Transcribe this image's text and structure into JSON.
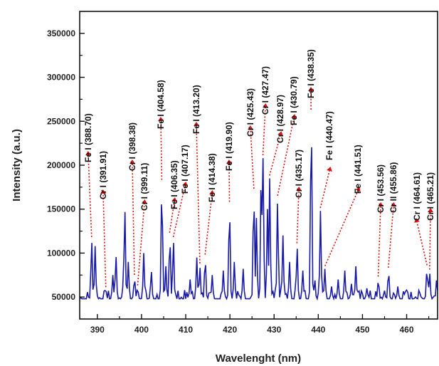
{
  "chart_data": {
    "type": "line",
    "title": "",
    "xlabel": "Wavelenght (nm)",
    "ylabel": "Intensity (a.u.)",
    "xlim": [
      386,
      467
    ],
    "ylim": [
      25000,
      375000
    ],
    "x_ticks": [
      390,
      400,
      410,
      420,
      430,
      440,
      450,
      460
    ],
    "y_ticks": [
      50000,
      100000,
      150000,
      200000,
      250000,
      300000,
      350000
    ],
    "grid": false,
    "series": [
      {
        "color": "#1a1aa8",
        "peaks": [
          [
            388.7,
            115000
          ],
          [
            389.5,
            108000
          ],
          [
            391.9,
            58000
          ],
          [
            393.5,
            75000
          ],
          [
            394.2,
            98000
          ],
          [
            395.8,
            62000
          ],
          [
            396.2,
            152000
          ],
          [
            397.0,
            90000
          ],
          [
            398.4,
            72000
          ],
          [
            399.1,
            60000
          ],
          [
            400.5,
            100000
          ],
          [
            402.2,
            80000
          ],
          [
            404.6,
            180000
          ],
          [
            405.5,
            85000
          ],
          [
            406.4,
            120000
          ],
          [
            407.2,
            115000
          ],
          [
            411.0,
            70000
          ],
          [
            412.5,
            95000
          ],
          [
            413.2,
            85000
          ],
          [
            414.4,
            95000
          ],
          [
            416.0,
            75000
          ],
          [
            418.5,
            80000
          ],
          [
            419.9,
            155000
          ],
          [
            421.0,
            90000
          ],
          [
            423.0,
            82000
          ],
          [
            425.4,
            170000
          ],
          [
            426.0,
            140000
          ],
          [
            427.1,
            200000
          ],
          [
            427.5,
            208000
          ],
          [
            428.5,
            150000
          ],
          [
            429.0,
            185000
          ],
          [
            430.8,
            162000
          ],
          [
            432.0,
            120000
          ],
          [
            433.5,
            90000
          ],
          [
            435.2,
            108000
          ],
          [
            436.5,
            80000
          ],
          [
            438.4,
            260000
          ],
          [
            439.2,
            70000
          ],
          [
            440.5,
            148000
          ],
          [
            441.5,
            82000
          ],
          [
            443.0,
            62000
          ],
          [
            444.5,
            70000
          ],
          [
            446.0,
            80000
          ],
          [
            447.5,
            65000
          ],
          [
            448.5,
            85000
          ],
          [
            451.0,
            60000
          ],
          [
            453.6,
            70000
          ],
          [
            455.9,
            80000
          ],
          [
            458.0,
            62000
          ],
          [
            460.0,
            58000
          ],
          [
            462.0,
            50000
          ],
          [
            464.6,
            83000
          ],
          [
            465.2,
            78000
          ],
          [
            466.8,
            70000
          ]
        ],
        "baseline": 48000
      }
    ],
    "annotations": [
      {
        "text": "Fe I (388.70)",
        "x": 388.7,
        "y": 115000
      },
      {
        "text": "Cr I (391.91)",
        "x": 391.91,
        "y": 58000
      },
      {
        "text": "Cr I (398.38)",
        "x": 398.38,
        "y": 72000
      },
      {
        "text": "Cr I (399.11)",
        "x": 399.11,
        "y": 60000
      },
      {
        "text": "Fe I (404.58)",
        "x": 404.58,
        "y": 180000
      },
      {
        "text": "Fe I (406.35)",
        "x": 406.35,
        "y": 120000
      },
      {
        "text": "Fe I (407.17)",
        "x": 407.17,
        "y": 115000
      },
      {
        "text": "Fe I (413.20)",
        "x": 413.2,
        "y": 85000
      },
      {
        "text": "Fe I (414.38)",
        "x": 414.38,
        "y": 95000
      },
      {
        "text": "Fe I (419.90)",
        "x": 419.9,
        "y": 155000
      },
      {
        "text": "Cr I (425.43)",
        "x": 425.43,
        "y": 170000
      },
      {
        "text": "Cr I (427.47)",
        "x": 427.47,
        "y": 208000
      },
      {
        "text": "Cr I (428.97)",
        "x": 428.97,
        "y": 185000
      },
      {
        "text": "Fe I (430.79)",
        "x": 430.79,
        "y": 162000
      },
      {
        "text": "Cr I (435.17)",
        "x": 435.17,
        "y": 108000
      },
      {
        "text": "Fe I (438.35)",
        "x": 438.35,
        "y": 260000
      },
      {
        "text": "Fe I (440.47)",
        "x": 440.47,
        "y": 148000
      },
      {
        "text": "Fe I (441.51)",
        "x": 441.51,
        "y": 82000
      },
      {
        "text": "Cr I (453.56)",
        "x": 453.56,
        "y": 70000
      },
      {
        "text": "Cr II (455.86)",
        "x": 455.86,
        "y": 80000
      },
      {
        "text": "Cr I (464.61)",
        "x": 464.61,
        "y": 83000
      },
      {
        "text": "Cr I (465.21)",
        "x": 465.21,
        "y": 78000
      }
    ]
  }
}
